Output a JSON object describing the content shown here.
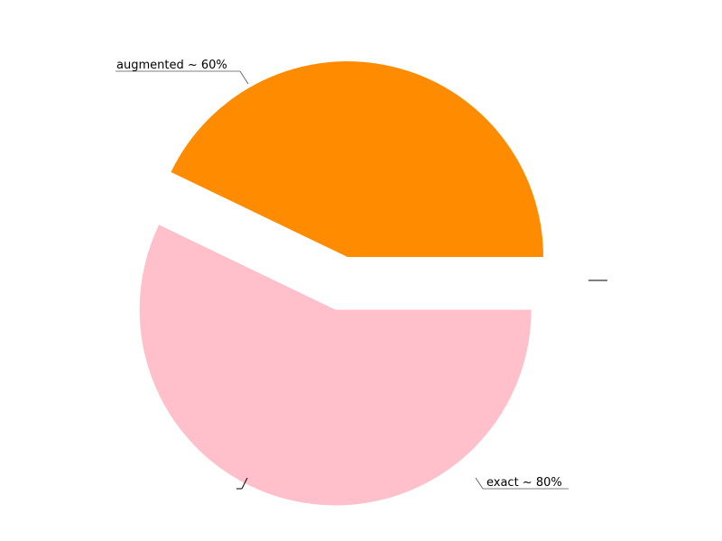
{
  "chart_data": {
    "type": "pie",
    "title": "",
    "slices": [
      {
        "label": "augmented ~ 60%",
        "value": 60,
        "color": "#ff8c00",
        "exploded": false
      },
      {
        "label": "exact ~ 80%",
        "value": 80,
        "color": "#ffc0cb",
        "exploded": true
      },
      {
        "label": "",
        "value": 0,
        "color": "#1f77b4",
        "exploded": true
      }
    ],
    "start_angle_deg": 0,
    "direction": "counterclockwise",
    "legend": "none"
  }
}
